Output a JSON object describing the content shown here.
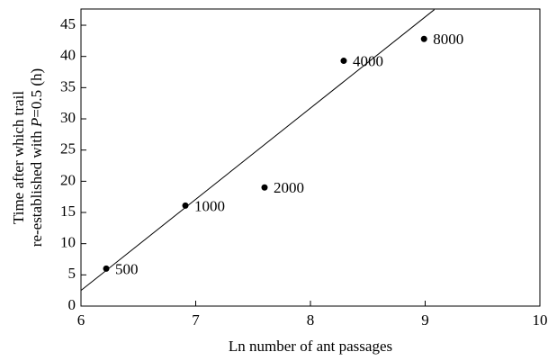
{
  "chart_data": {
    "type": "scatter",
    "x_label": "Ln number of ant passages",
    "y_label": {
      "line1": "Time after which trail",
      "line2": [
        "re-established with ",
        "P",
        "=0.5 (h)"
      ]
    },
    "x": [
      6.22,
      6.91,
      7.6,
      8.29,
      8.99
    ],
    "values": [
      6,
      16.1,
      19,
      39.3,
      42.8
    ],
    "point_labels": [
      "500",
      "1000",
      "2000",
      "4000",
      "8000"
    ],
    "color": "#000000",
    "fit_line": {
      "x": [
        6,
        9.08
      ],
      "y": [
        2.5,
        47.5
      ]
    },
    "xlim": [
      6,
      10
    ],
    "xticks": [
      6,
      7,
      8,
      9,
      10
    ],
    "ylim": [
      0,
      47.6
    ],
    "yticks": [
      0,
      5,
      10,
      15,
      20,
      25,
      30,
      35,
      40,
      45
    ]
  }
}
